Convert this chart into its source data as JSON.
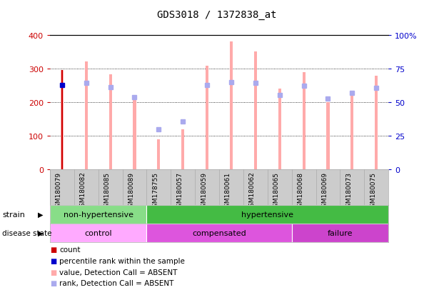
{
  "title": "GDS3018 / 1372838_at",
  "samples": [
    "GSM180079",
    "GSM180082",
    "GSM180085",
    "GSM180089",
    "GSM178755",
    "GSM180057",
    "GSM180059",
    "GSM180061",
    "GSM180062",
    "GSM180065",
    "GSM180068",
    "GSM180069",
    "GSM180073",
    "GSM180075"
  ],
  "value_bars": [
    295,
    320,
    283,
    222,
    90,
    120,
    308,
    380,
    350,
    240,
    288,
    200,
    233,
    278
  ],
  "rank_markers": [
    250,
    258,
    245,
    215,
    120,
    143,
    250,
    260,
    258,
    222,
    248,
    210,
    228,
    242
  ],
  "count_bar": 295,
  "count_rank_marker": 250,
  "ylim_left": [
    0,
    400
  ],
  "yticks_left": [
    0,
    100,
    200,
    300,
    400
  ],
  "ytick_right_labels": [
    "0",
    "25",
    "50",
    "75",
    "100%"
  ],
  "strain_groups": [
    {
      "label": "non-hypertensive",
      "start": 0,
      "end": 4,
      "color": "#88dd88"
    },
    {
      "label": "hypertensive",
      "start": 4,
      "end": 14,
      "color": "#44bb44"
    }
  ],
  "disease_groups": [
    {
      "label": "control",
      "start": 0,
      "end": 4,
      "color": "#ffaaff"
    },
    {
      "label": "compensated",
      "start": 4,
      "end": 10,
      "color": "#dd55dd"
    },
    {
      "label": "failure",
      "start": 10,
      "end": 14,
      "color": "#cc44cc"
    }
  ],
  "value_bar_color": "#ffaaaa",
  "rank_marker_color": "#aaaaee",
  "count_color": "#cc0000",
  "count_rank_color": "#0000cc",
  "bg_color": "#ffffff",
  "tick_left_color": "#cc0000",
  "tick_right_color": "#0000cc",
  "label_area_color": "#cccccc",
  "label_area_border": "#999999"
}
